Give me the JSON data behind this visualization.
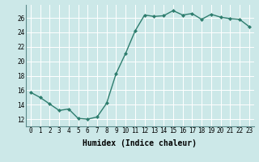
{
  "x": [
    0,
    1,
    2,
    3,
    4,
    5,
    6,
    7,
    8,
    9,
    10,
    11,
    12,
    13,
    14,
    15,
    16,
    17,
    18,
    19,
    20,
    21,
    22,
    23
  ],
  "y": [
    15.7,
    15.0,
    14.1,
    13.2,
    13.4,
    12.1,
    12.0,
    12.3,
    14.2,
    18.3,
    21.1,
    24.2,
    26.4,
    26.2,
    26.3,
    27.0,
    26.4,
    26.6,
    25.8,
    26.5,
    26.1,
    25.9,
    25.8,
    24.8
  ],
  "line_color": "#2e7d6e",
  "marker": "D",
  "markersize": 2.0,
  "linewidth": 1.0,
  "xlabel": "Humidex (Indice chaleur)",
  "xlim": [
    -0.5,
    23.5
  ],
  "ylim": [
    11,
    27.8
  ],
  "yticks": [
    12,
    14,
    16,
    18,
    20,
    22,
    24,
    26
  ],
  "xticks": [
    0,
    1,
    2,
    3,
    4,
    5,
    6,
    7,
    8,
    9,
    10,
    11,
    12,
    13,
    14,
    15,
    16,
    17,
    18,
    19,
    20,
    21,
    22,
    23
  ],
  "bg_color": "#cce8e8",
  "grid_color": "#ffffff",
  "xlabel_fontsize": 7,
  "tick_fontsize": 5.5
}
